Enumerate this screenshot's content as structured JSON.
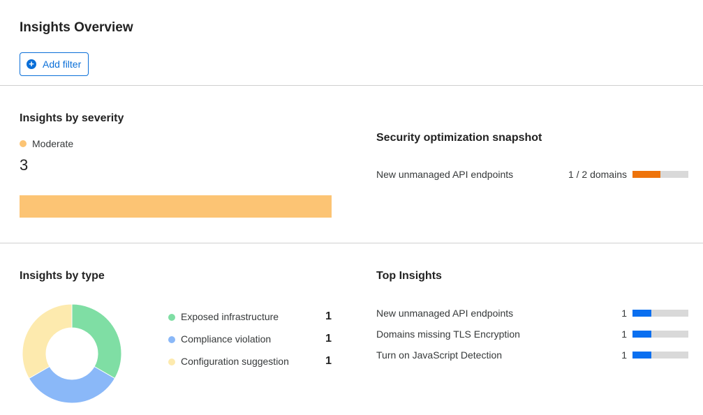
{
  "header": {
    "title": "Insights Overview",
    "add_filter_label": "Add filter",
    "add_filter_icon": "plus-circle-icon"
  },
  "severity": {
    "title": "Insights by severity",
    "legend_label": "Moderate",
    "count": "3",
    "color": "#fcc474"
  },
  "snapshot": {
    "title": "Security optimization snapshot",
    "items": [
      {
        "label": "New unmanaged API endpoints",
        "value": "1 / 2 domains",
        "fraction": 0.5,
        "color": "#ee730a"
      }
    ]
  },
  "by_type": {
    "title": "Insights by type",
    "items": [
      {
        "label": "Exposed infrastructure",
        "count": "1",
        "color": "#7fdea4"
      },
      {
        "label": "Compliance violation",
        "count": "1",
        "color": "#8ab8f8"
      },
      {
        "label": "Configuration suggestion",
        "count": "1",
        "color": "#fdeaae"
      }
    ]
  },
  "top": {
    "title": "Top Insights",
    "bar_color": "#0a6ff0",
    "items": [
      {
        "label": "New unmanaged API endpoints",
        "count": "1",
        "fraction": 0.333
      },
      {
        "label": "Domains missing TLS Encryption",
        "count": "1",
        "fraction": 0.333
      },
      {
        "label": "Turn on JavaScript Detection",
        "count": "1",
        "fraction": 0.333
      }
    ]
  }
}
